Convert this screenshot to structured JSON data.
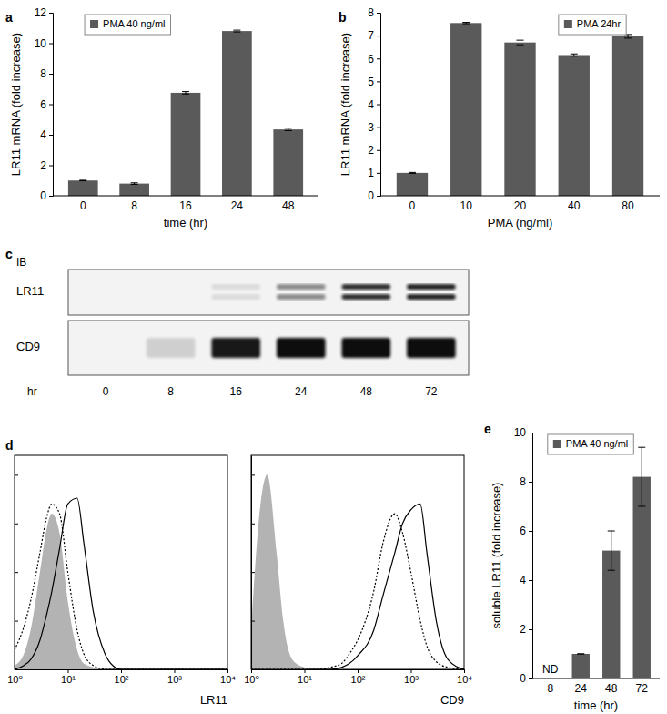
{
  "chart_data": [
    {
      "type": "bar",
      "title": "a",
      "ylabel": "LR11 mRNA (fold increase)",
      "xlabel": "time (hr)",
      "categories": [
        "0",
        "8",
        "16",
        "24",
        "48"
      ],
      "series": [
        {
          "name": "PMA 40 ng/ml",
          "color": "#5a5a5a",
          "values": [
            1,
            0.8,
            6.75,
            10.8,
            4.35
          ],
          "errors": [
            0.02,
            0.05,
            0.08,
            0.06,
            0.08
          ]
        }
      ],
      "ylim": [
        0,
        12
      ],
      "yticks": [
        0,
        2,
        4,
        6,
        8,
        10,
        12
      ],
      "grid": false,
      "legend": "top-left"
    },
    {
      "type": "bar",
      "title": "b",
      "ylabel": "LR11 mRNA (fold increase)",
      "xlabel": "PMA (ng/ml)",
      "categories": [
        "0",
        "10",
        "20",
        "40",
        "80"
      ],
      "series": [
        {
          "name": "PMA 24hr",
          "color": "#5a5a5a",
          "values": [
            1,
            7.55,
            6.7,
            6.15,
            6.97
          ],
          "errors": [
            0.02,
            0.03,
            0.1,
            0.05,
            0.08
          ]
        }
      ],
      "ylim": [
        0,
        8
      ],
      "yticks": [
        0,
        1,
        2,
        3,
        4,
        5,
        6,
        7,
        8
      ],
      "grid": false,
      "legend": "top-right"
    },
    {
      "type": "blot",
      "title": "c",
      "subtitle": "IB",
      "xlabel": "hr",
      "categories": [
        "0",
        "8",
        "16",
        "24",
        "48",
        "72"
      ],
      "series": [
        {
          "name": "LR11",
          "color": "#111111",
          "values": [
            0,
            0,
            0.1,
            0.45,
            0.85,
            0.9
          ]
        },
        {
          "name": "CD9",
          "color": "#111111",
          "values": [
            0,
            0.15,
            0.95,
            1,
            1,
            1
          ]
        }
      ]
    },
    {
      "type": "line",
      "title": "d",
      "xlabel": "LR11",
      "log": "x",
      "tick_labels": "x",
      "x": [
        1,
        1.5,
        2,
        3,
        4,
        5,
        7,
        10,
        15,
        20,
        30,
        50,
        70,
        100,
        200,
        300,
        500,
        700,
        1000,
        1500,
        2000,
        3000,
        5000,
        10000
      ],
      "series": [
        {
          "type": "area",
          "color": "#b3b3b3",
          "values": [
            2,
            8,
            20,
            50,
            72,
            80,
            70,
            35,
            10,
            3,
            1,
            0,
            0,
            0,
            0,
            0,
            0,
            0,
            0,
            0,
            0,
            0,
            0,
            0
          ]
        },
        {
          "color": "#000000",
          "line_style": "dotted",
          "values": [
            10,
            22,
            35,
            60,
            78,
            85,
            80,
            50,
            20,
            8,
            2,
            0,
            0,
            0,
            0,
            0,
            0,
            0,
            0,
            0,
            0,
            0,
            0,
            0
          ]
        },
        {
          "color": "#000000",
          "line_style": "solid",
          "values": [
            0,
            2,
            5,
            15,
            28,
            40,
            62,
            85,
            88,
            65,
            30,
            8,
            2,
            0,
            0,
            0,
            0,
            0,
            0,
            0,
            0,
            0,
            0,
            0
          ]
        }
      ],
      "xlim": [
        1,
        10000
      ],
      "xticks": [
        {
          "value": 1,
          "label": "10⁰"
        },
        {
          "value": 10,
          "label": "10¹"
        },
        {
          "value": 100,
          "label": "10²"
        },
        {
          "value": 1000,
          "label": "10³"
        },
        {
          "value": 10000,
          "label": "10⁴"
        }
      ],
      "ylim": [
        0,
        110
      ],
      "yticks": [
        0,
        25,
        50,
        75,
        100
      ]
    },
    {
      "type": "line",
      "xlabel": "CD9",
      "log": "x",
      "tick_labels": "x",
      "x": [
        1,
        1.5,
        2,
        3,
        4,
        5,
        7,
        10,
        15,
        20,
        30,
        50,
        70,
        100,
        200,
        300,
        500,
        700,
        1000,
        1500,
        2000,
        3000,
        5000,
        10000
      ],
      "series": [
        {
          "type": "area",
          "color": "#b3b3b3",
          "values": [
            20,
            85,
            100,
            60,
            25,
            10,
            3,
            1,
            0,
            0,
            0,
            0,
            0,
            0,
            0,
            0,
            0,
            0,
            0,
            0,
            0,
            0,
            0,
            0
          ]
        },
        {
          "color": "#000000",
          "line_style": "dotted",
          "values": [
            0,
            0,
            0,
            0,
            0,
            0,
            0,
            0,
            0,
            0,
            1,
            3,
            8,
            15,
            40,
            65,
            80,
            70,
            50,
            25,
            12,
            4,
            1,
            0
          ]
        },
        {
          "color": "#000000",
          "line_style": "solid",
          "values": [
            0,
            0,
            0,
            0,
            0,
            0,
            0,
            0,
            0,
            0,
            0,
            1,
            3,
            7,
            20,
            38,
            60,
            75,
            82,
            85,
            60,
            25,
            5,
            0
          ]
        }
      ],
      "xlim": [
        1,
        10000
      ],
      "xticks": [
        {
          "value": 1,
          "label": "10⁰"
        },
        {
          "value": 10,
          "label": "10¹"
        },
        {
          "value": 100,
          "label": "10²"
        },
        {
          "value": 1000,
          "label": "10³"
        },
        {
          "value": 10000,
          "label": "10⁴"
        }
      ],
      "ylim": [
        0,
        110
      ],
      "yticks": [
        0,
        25,
        50,
        75,
        100
      ]
    },
    {
      "type": "bar",
      "title": "e",
      "ylabel": "soluble LR11 (fold increase)",
      "xlabel": "time (hr)",
      "categories": [
        "8",
        "24",
        "48",
        "72"
      ],
      "series": [
        {
          "name": "PMA 40 ng/ml",
          "color": "#5a5a5a",
          "values": [
            null,
            1,
            5.2,
            8.2
          ],
          "errors": [
            null,
            0,
            0.8,
            1.2
          ]
        }
      ],
      "annotations": [
        {
          "text": "ND",
          "x": "8"
        }
      ],
      "ylim": [
        0,
        10
      ],
      "yticks": [
        0,
        2,
        4,
        6,
        8,
        10
      ],
      "grid": false,
      "legend": "top-left"
    }
  ]
}
